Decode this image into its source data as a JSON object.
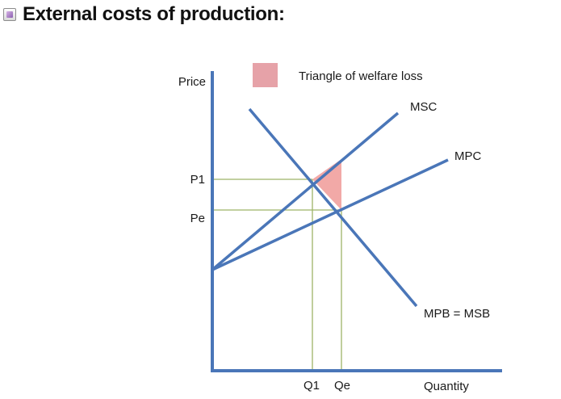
{
  "title": "External costs of production:",
  "colors": {
    "curve": "#4a76b8",
    "guide": "#9db468",
    "welfare_loss": "#f2a9a7",
    "legend_swatch": "#e6a2a8",
    "text": "#1a1a1a"
  },
  "legend": {
    "label": "Triangle of welfare loss",
    "icon": "pink-square"
  },
  "axes": {
    "y_label": "Price",
    "x_label": "Quantity"
  },
  "price_ticks": {
    "p1": "P1",
    "pe": "Pe"
  },
  "quantity_ticks": {
    "q1": "Q1",
    "qe": "Qe"
  },
  "curves": {
    "msc": "MSC",
    "mpc": "MPC",
    "demand": "MPB = MSB"
  }
}
